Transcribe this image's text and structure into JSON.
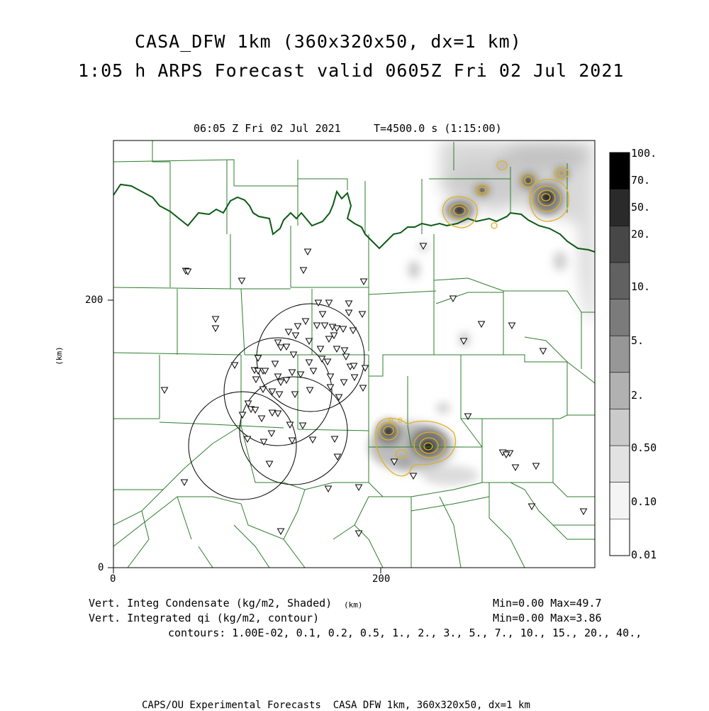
{
  "title_line1": "CASA_DFW 1km (360x320x50, dx=1 km)",
  "title_line2": "1:05 h ARPS Forecast valid 0605Z Fri 02 Jul 2021",
  "subtitle_time": "06:05 Z Fri 02 Jul 2021",
  "subtitle_t": "T=4500.0 s (1:15:00)",
  "axis": {
    "y_unit": "(km)",
    "x_unit": "(km)",
    "x_ticks": [
      "0",
      "200"
    ],
    "y_ticks": [
      "0",
      "200"
    ]
  },
  "colorbar": {
    "labels": [
      "100.",
      "70.",
      "50.",
      "20.",
      "10.",
      "5.",
      "2.",
      "0.50",
      "0.10",
      "0.01"
    ],
    "colors": [
      "#000000",
      "#2a2a2a",
      "#474747",
      "#616161",
      "#7b7b7b",
      "#979797",
      "#b1b1b1",
      "#cacaca",
      "#e2e2e2",
      "#f4f4f4",
      "#ffffff"
    ]
  },
  "footer": {
    "var1": "Vert. Integ Condensate (kg/m2, Shaded)",
    "var1_range": "Min=0.00 Max=49.7",
    "var2": "Vert. Integrated qi (kg/m2, contour)",
    "var2_range": "Min=0.00 Max=3.86",
    "contours": "contours: 1.00E-02, 0.1, 0.2, 0.5, 1., 2., 3., 5., 7., 10., 15., 20., 40.,",
    "credit": "CAPS/OU Experimental Forecasts  CASA DFW 1km, 360x320x50, dx=1 km"
  },
  "contour_label": "0.0",
  "colors": {
    "county_lines": "#2e7d2e",
    "state_line": "#0b5a14",
    "contours": "#e0b020",
    "stations": "#000000"
  }
}
